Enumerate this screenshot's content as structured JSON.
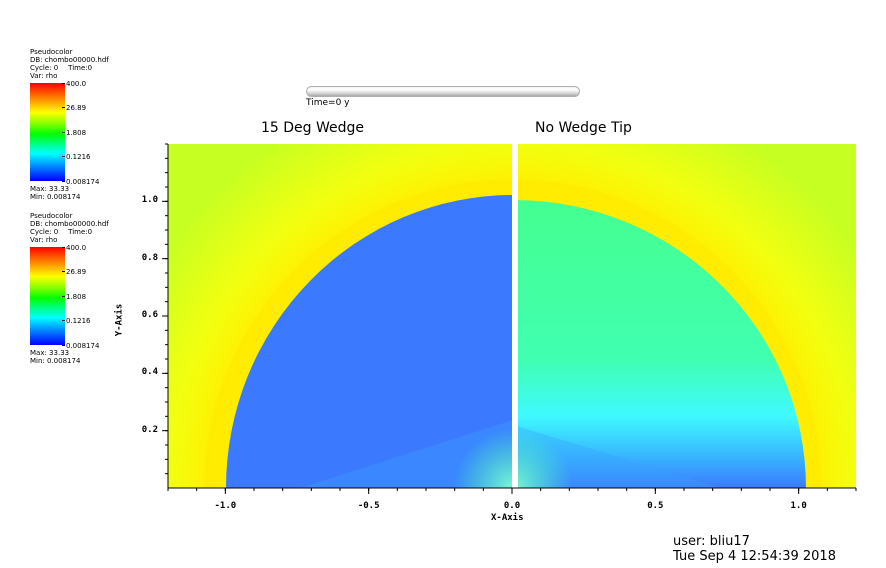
{
  "legends": [
    {
      "plot_type": "Pseudocolor",
      "db": "DB: chombo00000.hdf",
      "cycle": "Cycle: 0",
      "time": "Time:0",
      "var": "Var: rho",
      "ticks": [
        "400.0",
        "26.89",
        "1.808",
        "0.1216",
        "0.008174"
      ],
      "max": "Max: 33.33",
      "min": "Min: 0.008174"
    },
    {
      "plot_type": "Pseudocolor",
      "db": "DB: chombo00000.hdf",
      "cycle": "Cycle: 0",
      "time": "Time:0",
      "var": "Var: rho",
      "ticks": [
        "400.0",
        "26.89",
        "1.808",
        "0.1216",
        "0.008174"
      ],
      "max": "Max: 33.33",
      "min": "Min: 0.008174"
    }
  ],
  "time_slider": {
    "label": "Time=0 y"
  },
  "user_info": {
    "user": "user: bliu17",
    "date": "Tue Sep  4 12:54:39 2018"
  },
  "colors": {
    "outer_green": "#ccff1a",
    "outer_yellow": "#ffff00",
    "left_core": "#3fffa0",
    "right_core": "#49ff8e",
    "base_blue": "#3a85ff",
    "divider": "#ffffff"
  },
  "chart_data": {
    "type": "heatmap",
    "variable": "rho",
    "panels": [
      {
        "title": "15 Deg Wedge",
        "x_range": [
          -1.2,
          0.0
        ],
        "region_radius": 1.02
      },
      {
        "title": "No Wedge Tip",
        "x_range": [
          0.0,
          1.2
        ],
        "region_radius": 1.02
      }
    ],
    "xlabel": "X-Axis",
    "ylabel": "Y-Axis",
    "xlim": [
      -1.2,
      1.2
    ],
    "ylim": [
      0.0,
      1.2
    ],
    "x_ticks": [
      -1.0,
      -0.5,
      0.0,
      0.5,
      1.0
    ],
    "x_tick_labels": [
      "-1.0",
      "-0.5",
      "0.0",
      "0.5",
      "1.0"
    ],
    "y_ticks": [
      0.2,
      0.4,
      0.6,
      0.8,
      1.0
    ],
    "y_tick_labels": [
      "0.2",
      "0.4",
      "0.6",
      "0.8",
      "1.0"
    ],
    "color_scale": "log",
    "color_range": [
      0.008174,
      400.0
    ]
  }
}
